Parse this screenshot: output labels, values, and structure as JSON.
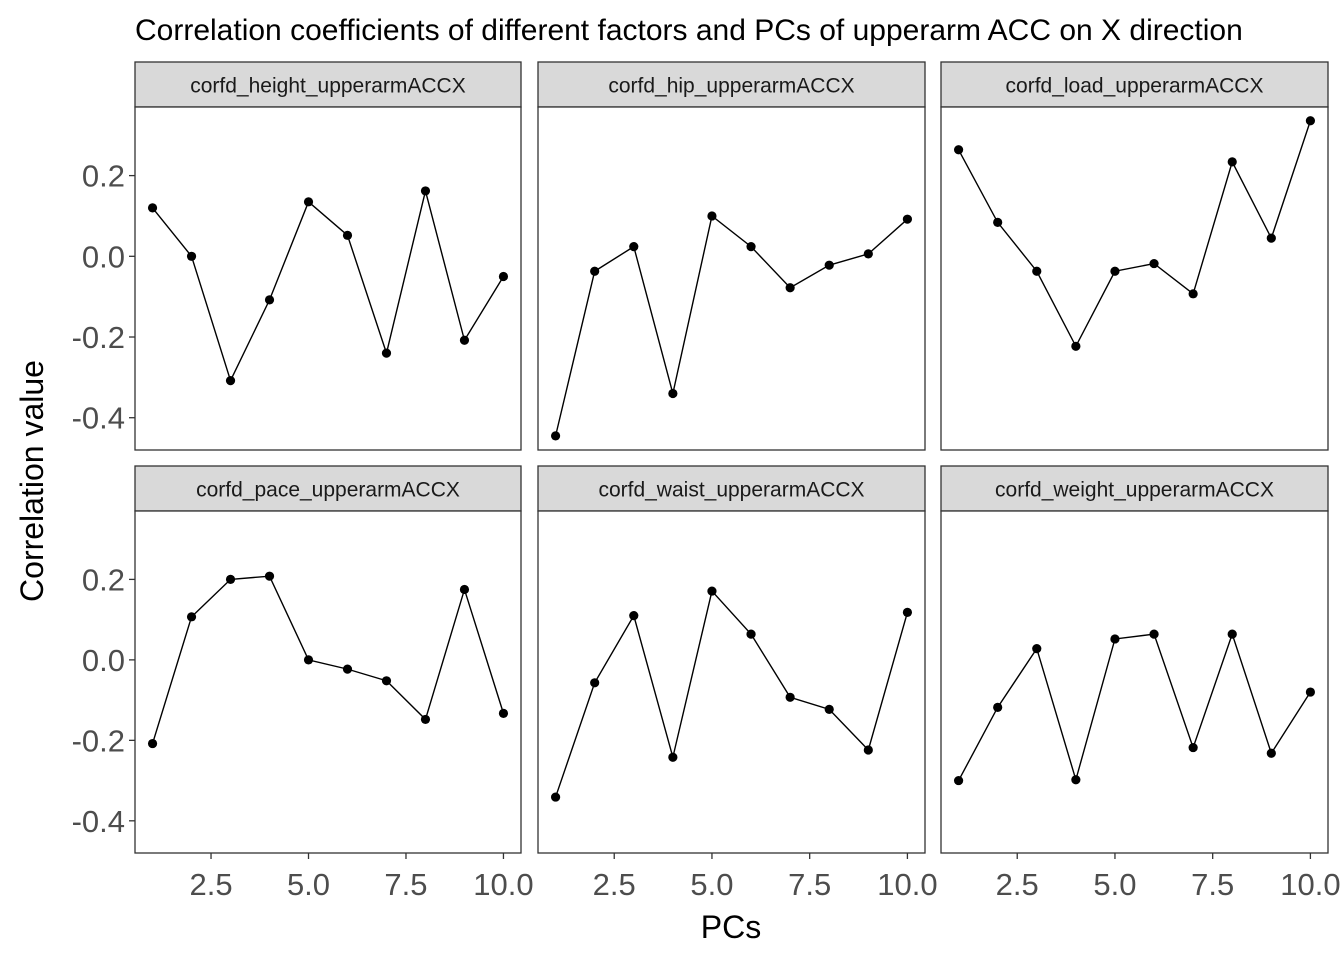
{
  "chart_data": {
    "type": "line",
    "title": "Correlation coefficients of different factors and PCs of upperarm ACC on X direction",
    "xlabel": "PCs",
    "ylabel": "Correlation value",
    "xlim": [
      0.55,
      10.45
    ],
    "ylim": [
      -0.48,
      0.37
    ],
    "x_ticks": [
      2.5,
      5.0,
      7.5,
      10.0
    ],
    "x_tick_labels": [
      "2.5",
      "5.0",
      "7.5",
      "10.0"
    ],
    "y_ticks": [
      -0.4,
      -0.2,
      0.0,
      0.2
    ],
    "y_tick_labels": [
      "-0.4",
      "-0.2",
      "0.0",
      "0.2"
    ],
    "grid": false,
    "legend": "none",
    "x": [
      1,
      2,
      3,
      4,
      5,
      6,
      7,
      8,
      9,
      10
    ],
    "panels": [
      {
        "name": "corfd_height_upperarmACCX",
        "values": [
          0.12,
          0.0,
          -0.308,
          -0.108,
          0.135,
          0.052,
          -0.24,
          0.162,
          -0.208,
          -0.05
        ]
      },
      {
        "name": "corfd_hip_upperarmACCX",
        "values": [
          -0.445,
          -0.037,
          0.024,
          -0.34,
          0.1,
          0.024,
          -0.078,
          -0.022,
          0.006,
          0.092
        ]
      },
      {
        "name": "corfd_load_upperarmACCX",
        "values": [
          0.264,
          0.084,
          -0.037,
          -0.223,
          -0.037,
          -0.018,
          -0.093,
          0.234,
          0.045,
          0.336
        ]
      },
      {
        "name": "corfd_pace_upperarmACCX",
        "values": [
          -0.208,
          0.107,
          0.2,
          0.208,
          0.0,
          -0.023,
          -0.052,
          -0.148,
          0.175,
          -0.133
        ]
      },
      {
        "name": "corfd_waist_upperarmACCX",
        "values": [
          -0.341,
          -0.057,
          0.11,
          -0.242,
          0.171,
          0.064,
          -0.093,
          -0.123,
          -0.224,
          0.118
        ]
      },
      {
        "name": "corfd_weight_upperarmACCX",
        "values": [
          -0.3,
          -0.118,
          0.028,
          -0.298,
          0.052,
          0.064,
          -0.218,
          0.064,
          -0.232,
          -0.08
        ]
      }
    ],
    "colors": {
      "line": "#000000",
      "point": "#000000",
      "strip_fill": "#d9d9d9",
      "panel_border": "#333333",
      "tick_text": "#4d4d4d"
    }
  }
}
